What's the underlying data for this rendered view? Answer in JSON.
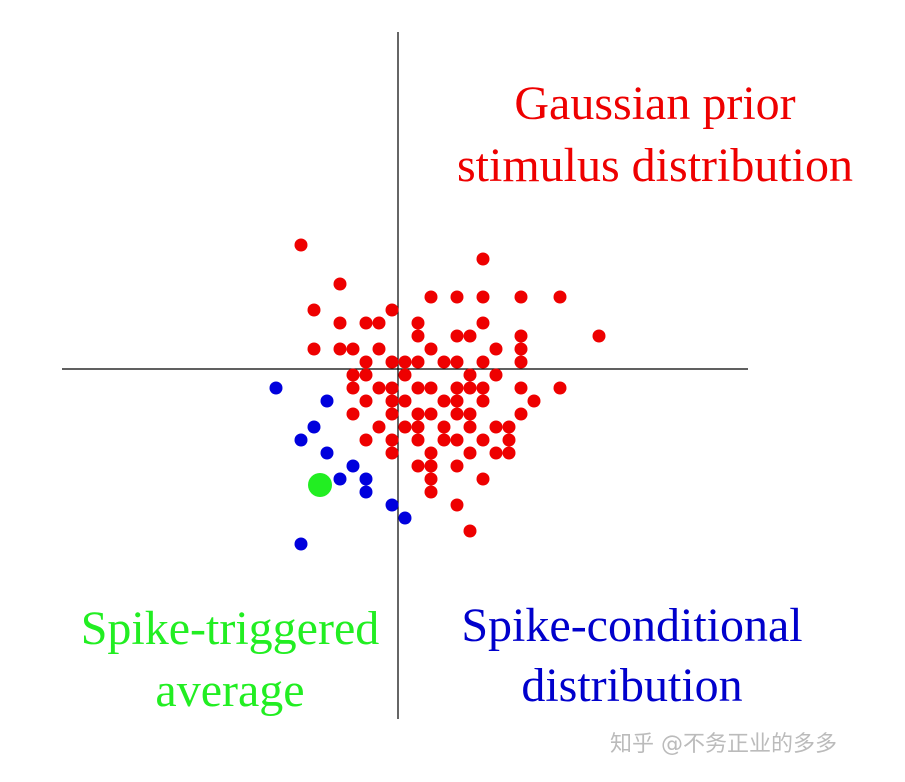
{
  "chart_data": {
    "type": "scatter",
    "xlim": [
      -336,
      350
    ],
    "ylim": [
      -350,
      337
    ],
    "series": [
      {
        "color": "#ee0000",
        "x": [
          -97,
          85,
          -58,
          -84,
          -6,
          33,
          59,
          85,
          123,
          162,
          -58,
          -32,
          -19,
          20,
          59,
          72,
          85,
          123,
          201,
          -84,
          -58,
          -45,
          -19,
          20,
          33,
          98,
          123,
          -32,
          -6,
          7,
          20,
          46,
          59,
          85,
          123,
          -45,
          -32,
          7,
          72,
          98,
          -45,
          -19,
          -6,
          20,
          33,
          59,
          72,
          85,
          123,
          162,
          -32,
          -6,
          7,
          46,
          59,
          85,
          136,
          -45,
          -6,
          20,
          33,
          59,
          72,
          123,
          -19,
          7,
          20,
          46,
          72,
          98,
          111,
          -32,
          -6,
          20,
          46,
          59,
          85,
          111,
          -6,
          33,
          72,
          98,
          111,
          20,
          33,
          59,
          33,
          85,
          33,
          59,
          72
        ],
        "y": [
          124,
          110,
          85,
          59,
          59,
          72,
          72,
          72,
          72,
          72,
          46,
          46,
          46,
          46,
          33,
          33,
          46,
          33,
          33,
          20,
          20,
          20,
          20,
          33,
          20,
          20,
          20,
          7,
          7,
          7,
          7,
          7,
          7,
          7,
          7,
          -6,
          -6,
          -6,
          -6,
          -6,
          -19,
          -19,
          -19,
          -19,
          -19,
          -19,
          -19,
          -19,
          -19,
          -19,
          -32,
          -32,
          -32,
          -32,
          -32,
          -32,
          -32,
          -45,
          -45,
          -45,
          -45,
          -45,
          -45,
          -45,
          -58,
          -58,
          -58,
          -58,
          -58,
          -58,
          -58,
          -71,
          -71,
          -71,
          -71,
          -71,
          -71,
          -71,
          -84,
          -84,
          -84,
          -84,
          -84,
          -97,
          -97,
          -97,
          -110,
          -110,
          -123,
          -136,
          -162
        ]
      },
      {
        "color": "#0000dd",
        "x": [
          -122,
          -71,
          -84,
          -97,
          -71,
          -45,
          -58,
          -32,
          -32,
          -6,
          7,
          -97
        ],
        "y": [
          -19,
          -32,
          -58,
          -71,
          -84,
          -97,
          -110,
          -110,
          -123,
          -136,
          -149,
          -175
        ]
      },
      {
        "color": "#22ee22",
        "size": "large",
        "x": [
          -78
        ],
        "y": [
          -116
        ]
      }
    ],
    "annotations": [
      {
        "lines": [
          "Gaussian prior",
          "stimulus distribution"
        ],
        "color": "#ee0000"
      },
      {
        "lines": [
          "Spike-triggered",
          "average"
        ],
        "color": "#22ee22"
      },
      {
        "lines": [
          "Spike-conditional",
          "distribution"
        ],
        "color": "#0000cc"
      }
    ],
    "watermark": "知乎 @不务正业的多多"
  }
}
